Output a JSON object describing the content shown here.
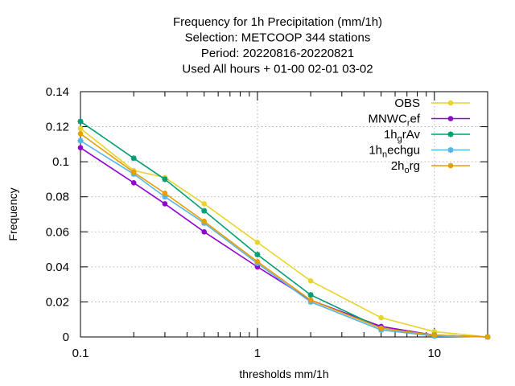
{
  "chart_data": {
    "type": "line",
    "title_lines": [
      "Frequency  for 1h Precipitation (mm/1h)",
      "Selection: METCOOP    344 stations",
      "Period: 20220816-20220821",
      "Used  All hours  + 01-00 02-01 03-02"
    ],
    "xlabel": "thresholds mm/1h",
    "ylabel": "Frequency",
    "x_scale": "log",
    "xlim": [
      0.1,
      20
    ],
    "ylim": [
      0,
      0.14
    ],
    "x_ticks": [
      {
        "value": 0.1,
        "label": "0.1"
      },
      {
        "value": 1,
        "label": "1"
      },
      {
        "value": 10,
        "label": "10"
      }
    ],
    "y_ticks": [
      {
        "value": 0,
        "label": "0"
      },
      {
        "value": 0.02,
        "label": "0.02"
      },
      {
        "value": 0.04,
        "label": "0.04"
      },
      {
        "value": 0.06,
        "label": "0.06"
      },
      {
        "value": 0.08,
        "label": "0.08"
      },
      {
        "value": 0.1,
        "label": "0.1"
      },
      {
        "value": 0.12,
        "label": "0.12"
      },
      {
        "value": 0.14,
        "label": "0.14"
      }
    ],
    "grid": true,
    "legend_position": "top-right",
    "x": [
      0.1,
      0.2,
      0.3,
      0.5,
      1,
      2,
      5,
      10,
      20
    ],
    "series": [
      {
        "name": "OBS",
        "name_base": "OBS",
        "name_sub": "",
        "name_rest": "",
        "color": "#e8d42a",
        "marker": "circle",
        "values": [
          0.119,
          0.095,
          0.091,
          0.076,
          0.054,
          0.032,
          0.011,
          0.003,
          0.0
        ]
      },
      {
        "name": "MNWC_ref",
        "name_base": "MNWC",
        "name_sub": "r",
        "name_rest": "ef",
        "color": "#9400d3",
        "marker": "circle",
        "values": [
          0.108,
          0.088,
          0.076,
          0.06,
          0.04,
          0.021,
          0.006,
          0.001,
          0.0
        ]
      },
      {
        "name": "1h_grAv",
        "name_base": "1h",
        "name_sub": "g",
        "name_rest": "rAv",
        "color": "#009e73",
        "marker": "star",
        "values": [
          0.123,
          0.102,
          0.09,
          0.072,
          0.047,
          0.024,
          0.005,
          0.001,
          0.0
        ]
      },
      {
        "name": "1h_nechgu",
        "name_base": "1h",
        "name_sub": "n",
        "name_rest": "echgu",
        "color": "#56b4e9",
        "marker": "star",
        "values": [
          0.112,
          0.093,
          0.08,
          0.065,
          0.042,
          0.02,
          0.004,
          0.0005,
          0.0
        ]
      },
      {
        "name": "2h_org",
        "name_base": "2h",
        "name_sub": "o",
        "name_rest": "rg",
        "color": "#e69f00",
        "marker": "circle",
        "values": [
          0.116,
          0.094,
          0.082,
          0.066,
          0.043,
          0.021,
          0.005,
          0.001,
          0.0
        ]
      }
    ]
  }
}
